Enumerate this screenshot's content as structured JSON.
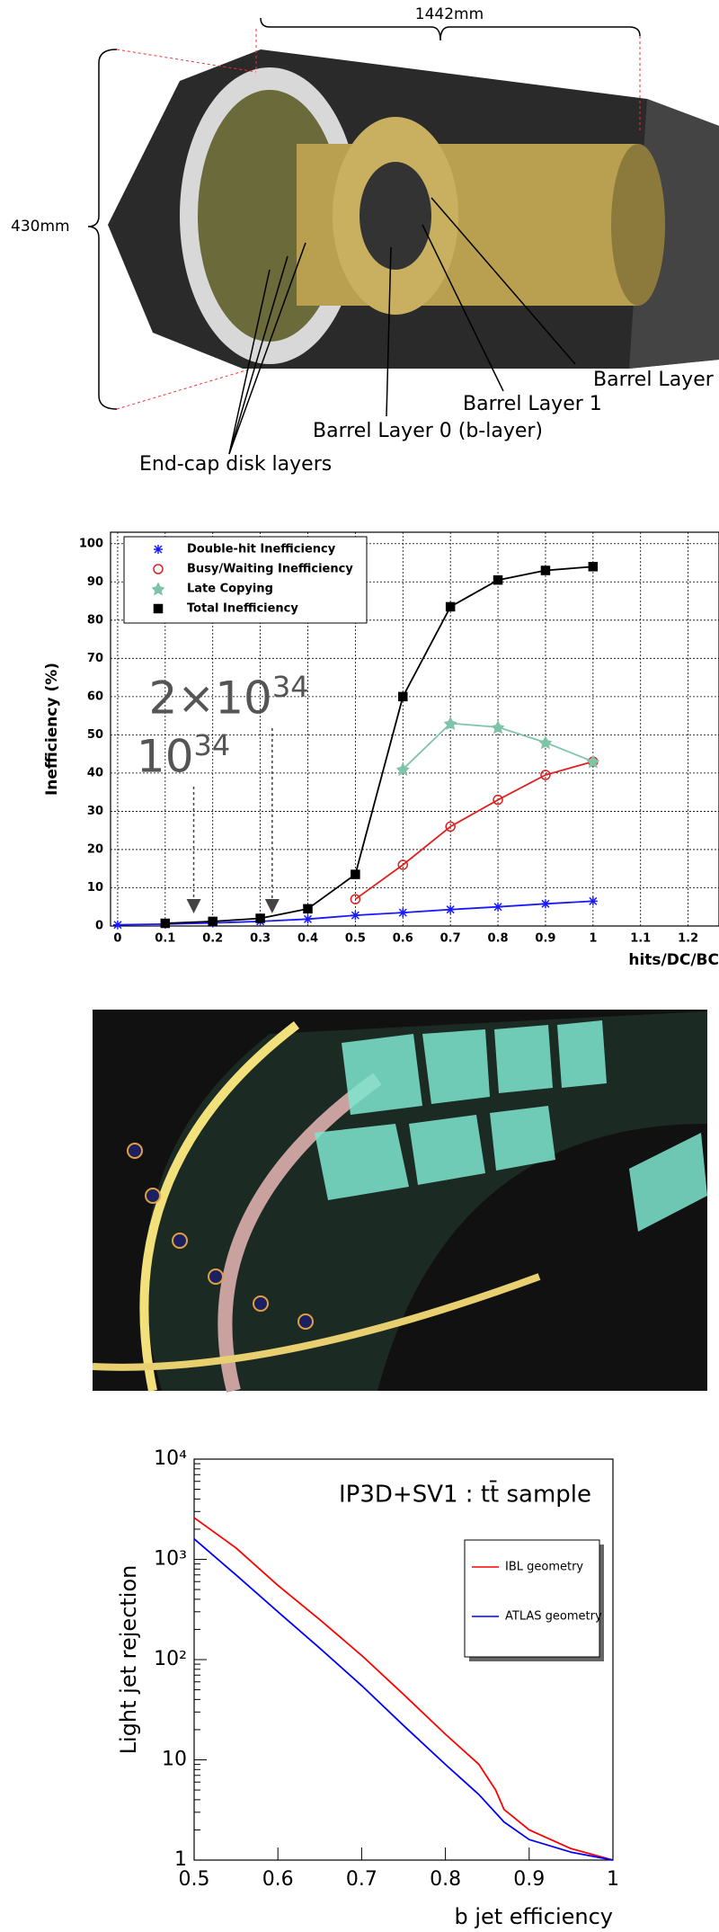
{
  "figure": {
    "labels": {
      "length": "1442mm",
      "diameter": "430mm",
      "barrel_layer": "Barrel Layer",
      "barrel_layer_1": "Barrel Layer 1",
      "barrel_layer_0": "Barrel Layer 0 (b-layer)",
      "endcap": "End-cap disk layers"
    }
  },
  "chart_data": [
    {
      "type": "line",
      "ylabel": "Inefficiency (%)",
      "xlabel": "hits/DC/BC",
      "xlim": [
        -0.015,
        1.265
      ],
      "ylim": [
        0,
        103
      ],
      "xticks": [
        0,
        0.1,
        0.2,
        0.3,
        0.4,
        0.5,
        0.6,
        0.7,
        0.8,
        0.9,
        1,
        1.1,
        1.2
      ],
      "yticks": [
        0,
        10,
        20,
        30,
        40,
        50,
        60,
        70,
        80,
        90,
        100
      ],
      "grid": true,
      "legend": "top-left",
      "annotations": [
        {
          "text": "10",
          "exponent": "34",
          "x": 0.16
        },
        {
          "text": "2×10",
          "exponent": "34",
          "x": 0.325
        }
      ],
      "series": [
        {
          "name": "Double-hit Inefficiency",
          "color": "#1a1aff",
          "marker": "star",
          "x": [
            0,
            0.1,
            0.2,
            0.3,
            0.4,
            0.5,
            0.6,
            0.7,
            0.8,
            0.9,
            1
          ],
          "values": [
            0.3,
            0.5,
            0.8,
            1.2,
            1.8,
            2.8,
            3.5,
            4.3,
            5,
            5.8,
            6.5
          ]
        },
        {
          "name": "Busy/Waiting Inefficiency",
          "color": "#e02020",
          "marker": "circle",
          "x": [
            0.5,
            0.6,
            0.7,
            0.8,
            0.9,
            1
          ],
          "values": [
            7,
            16,
            26,
            33,
            39.5,
            43
          ]
        },
        {
          "name": "Late Copying",
          "color": "#7fc4a8",
          "marker": "asterisk",
          "x": [
            0.6,
            0.7,
            0.8,
            0.9,
            1
          ],
          "values": [
            41,
            53,
            52,
            48,
            43
          ]
        },
        {
          "name": "Total Inefficiency",
          "color": "#000000",
          "marker": "square",
          "x": [
            0.1,
            0.2,
            0.3,
            0.4,
            0.5,
            0.6,
            0.7,
            0.8,
            0.9,
            1
          ],
          "values": [
            0.7,
            1.2,
            2,
            4.5,
            13.5,
            60,
            83.5,
            90.5,
            93,
            94
          ]
        }
      ]
    },
    {
      "type": "line",
      "log_y": true,
      "title": "IP3D+SV1 : tt̄ sample",
      "ylabel": "Light jet rejection",
      "xlabel": "b jet efficiency",
      "xlim": [
        0.5,
        1
      ],
      "ylim": [
        1,
        10000
      ],
      "xticks": [
        0.5,
        0.6,
        0.7,
        0.8,
        0.9,
        1
      ],
      "yticks": [
        1,
        10,
        {
          "value": 100,
          "label": "10²"
        },
        {
          "value": 1000,
          "label": "10³"
        },
        {
          "value": 10000,
          "label": "10⁴"
        }
      ],
      "legend": "top-right",
      "series": [
        {
          "name": "IBL geometry",
          "color": "#ff0000",
          "x": [
            0.5,
            0.55,
            0.6,
            0.65,
            0.7,
            0.75,
            0.8,
            0.84,
            0.86,
            0.87,
            0.9,
            0.95,
            1
          ],
          "values": [
            2600,
            1300,
            550,
            250,
            110,
            45,
            18,
            9,
            5,
            3.2,
            2,
            1.3,
            1
          ]
        },
        {
          "name": "ATLAS geometry",
          "color": "#0000ff",
          "x": [
            0.5,
            0.55,
            0.6,
            0.65,
            0.7,
            0.75,
            0.8,
            0.84,
            0.87,
            0.9,
            0.95,
            1
          ],
          "values": [
            1600,
            700,
            300,
            130,
            55,
            22,
            9,
            4.5,
            2.4,
            1.6,
            1.2,
            1
          ]
        }
      ]
    }
  ]
}
